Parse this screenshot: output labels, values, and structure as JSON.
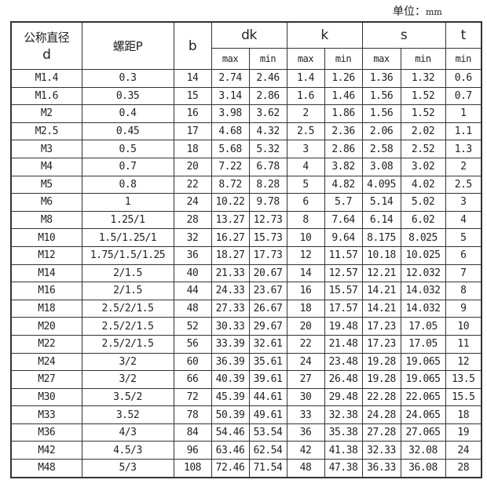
{
  "unit_label": "单位：",
  "unit_value": "mm",
  "headers": {
    "d_line1": "公称直径",
    "d_line2": "d",
    "pitch": "螺距P",
    "b": "b",
    "dk": "dk",
    "k": "k",
    "s": "s",
    "t": "t",
    "max": "max",
    "min": "min"
  },
  "rows": [
    [
      "M1.4",
      "0.3",
      "14",
      "2.74",
      "2.46",
      "1.4",
      "1.26",
      "1.36",
      "1.32",
      "0.6"
    ],
    [
      "M1.6",
      "0.35",
      "15",
      "3.14",
      "2.86",
      "1.6",
      "1.46",
      "1.56",
      "1.52",
      "0.7"
    ],
    [
      "M2",
      "0.4",
      "16",
      "3.98",
      "3.62",
      "2",
      "1.86",
      "1.56",
      "1.52",
      "1"
    ],
    [
      "M2.5",
      "0.45",
      "17",
      "4.68",
      "4.32",
      "2.5",
      "2.36",
      "2.06",
      "2.02",
      "1.1"
    ],
    [
      "M3",
      "0.5",
      "18",
      "5.68",
      "5.32",
      "3",
      "2.86",
      "2.58",
      "2.52",
      "1.3"
    ],
    [
      "M4",
      "0.7",
      "20",
      "7.22",
      "6.78",
      "4",
      "3.82",
      "3.08",
      "3.02",
      "2"
    ],
    [
      "M5",
      "0.8",
      "22",
      "8.72",
      "8.28",
      "5",
      "4.82",
      "4.095",
      "4.02",
      "2.5"
    ],
    [
      "M6",
      "1",
      "24",
      "10.22",
      "9.78",
      "6",
      "5.7",
      "5.14",
      "5.02",
      "3"
    ],
    [
      "M8",
      "1.25/1",
      "28",
      "13.27",
      "12.73",
      "8",
      "7.64",
      "6.14",
      "6.02",
      "4"
    ],
    [
      "M10",
      "1.5/1.25/1",
      "32",
      "16.27",
      "15.73",
      "10",
      "9.64",
      "8.175",
      "8.025",
      "5"
    ],
    [
      "M12",
      "1.75/1.5/1.25",
      "36",
      "18.27",
      "17.73",
      "12",
      "11.57",
      "10.18",
      "10.025",
      "6"
    ],
    [
      "M14",
      "2/1.5",
      "40",
      "21.33",
      "20.67",
      "14",
      "12.57",
      "12.21",
      "12.032",
      "7"
    ],
    [
      "M16",
      "2/1.5",
      "44",
      "24.33",
      "23.67",
      "16",
      "15.57",
      "14.21",
      "14.032",
      "8"
    ],
    [
      "M18",
      "2.5/2/1.5",
      "48",
      "27.33",
      "26.67",
      "18",
      "17.57",
      "14.21",
      "14.032",
      "9"
    ],
    [
      "M20",
      "2.5/2/1.5",
      "52",
      "30.33",
      "29.67",
      "20",
      "19.48",
      "17.23",
      "17.05",
      "10"
    ],
    [
      "M22",
      "2.5/2/1.5",
      "56",
      "33.39",
      "32.61",
      "22",
      "21.48",
      "17.23",
      "17.05",
      "11"
    ],
    [
      "M24",
      "3/2",
      "60",
      "36.39",
      "35.61",
      "24",
      "23.48",
      "19.28",
      "19.065",
      "12"
    ],
    [
      "M27",
      "3/2",
      "66",
      "40.39",
      "39.61",
      "27",
      "26.48",
      "19.28",
      "19.065",
      "13.5"
    ],
    [
      "M30",
      "3.5/2",
      "72",
      "45.39",
      "44.61",
      "30",
      "29.48",
      "22.28",
      "22.065",
      "15.5"
    ],
    [
      "M33",
      "3.52",
      "78",
      "50.39",
      "49.61",
      "33",
      "32.38",
      "24.28",
      "24.065",
      "18"
    ],
    [
      "M36",
      "4/3",
      "84",
      "54.46",
      "53.54",
      "36",
      "35.38",
      "27.28",
      "27.065",
      "19"
    ],
    [
      "M42",
      "4.5/3",
      "96",
      "63.46",
      "62.54",
      "42",
      "41.38",
      "32.33",
      "32.08",
      "24"
    ],
    [
      "M48",
      "5/3",
      "108",
      "72.46",
      "71.54",
      "48",
      "47.38",
      "36.33",
      "36.08",
      "28"
    ]
  ]
}
